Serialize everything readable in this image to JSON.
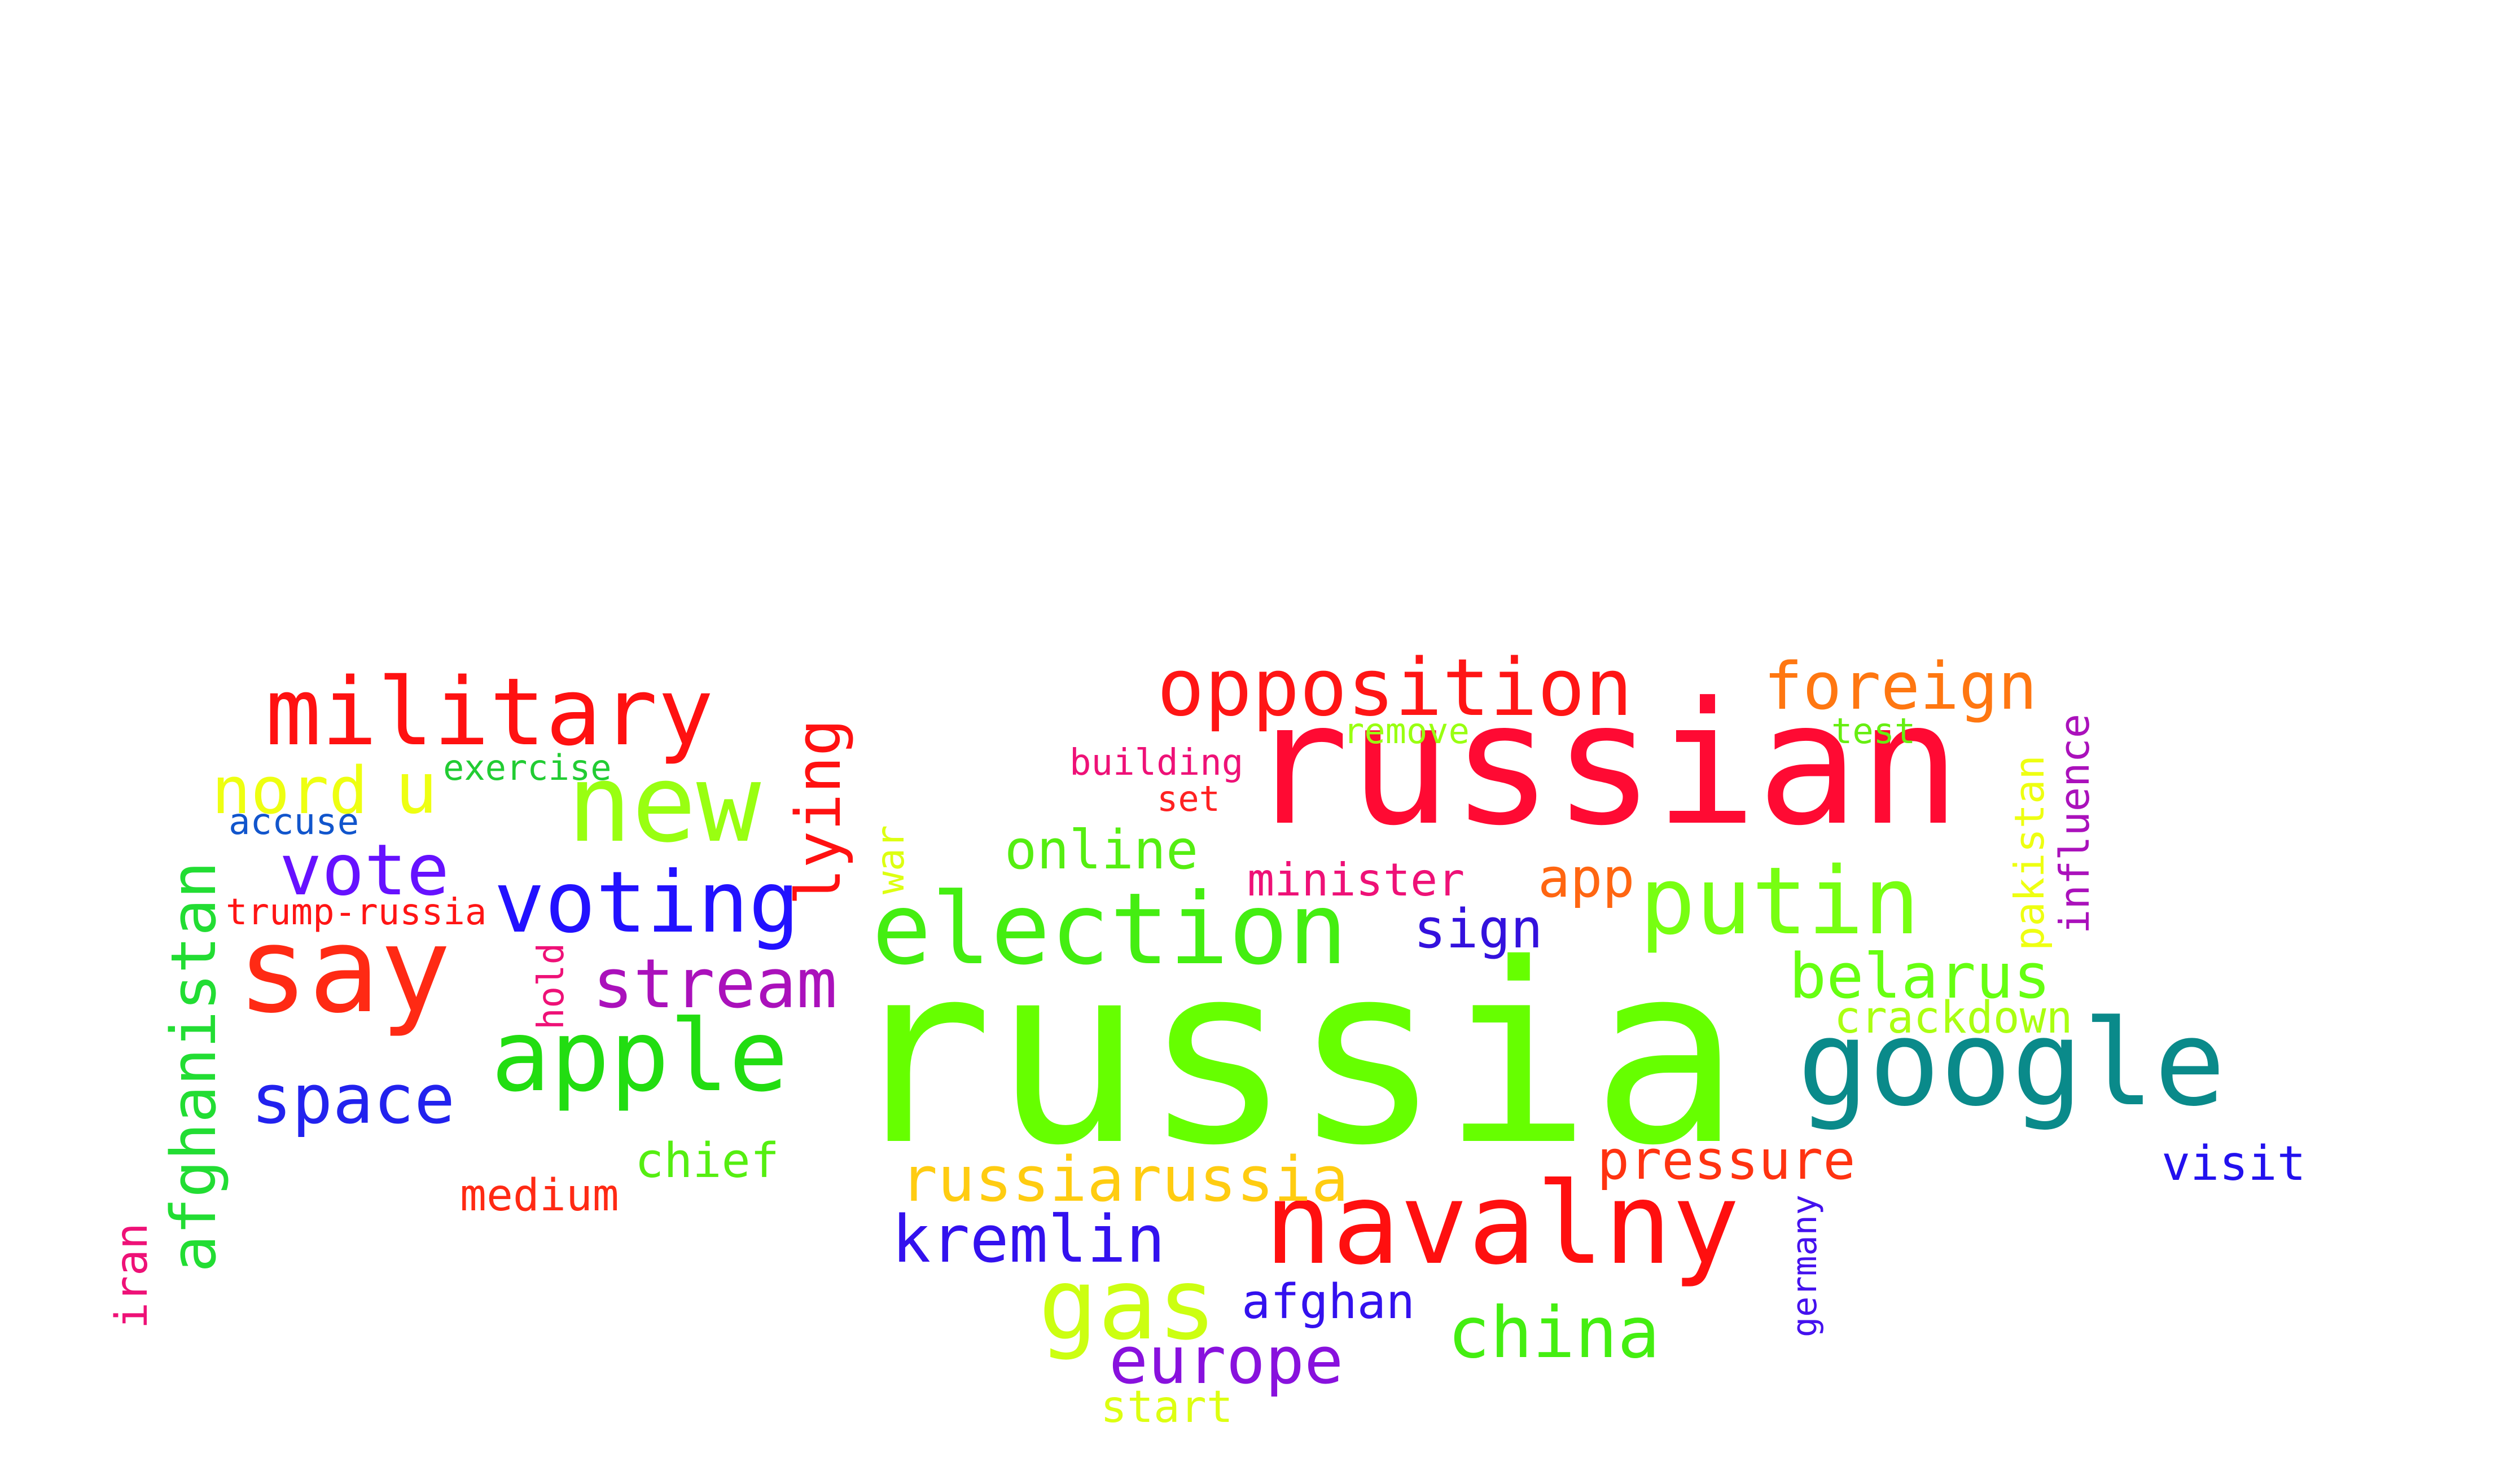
{
  "words": [
    {
      "text": "russia",
      "color": "#66ff00"
    },
    {
      "text": "russian",
      "color": "#ff0a33"
    },
    {
      "text": "navalny",
      "color": "#ff0f0f"
    },
    {
      "text": "google",
      "color": "#0a8a8a"
    },
    {
      "text": "say",
      "color": "#ff2a14"
    },
    {
      "text": "military",
      "color": "#ff1111"
    },
    {
      "text": "new",
      "color": "#99ff11"
    },
    {
      "text": "election",
      "color": "#44ee11"
    },
    {
      "text": "apple",
      "color": "#22dd11"
    },
    {
      "text": "putin",
      "color": "#77ff11"
    },
    {
      "text": "opposition",
      "color": "#ff1515"
    },
    {
      "text": "voting",
      "color": "#2211ff"
    },
    {
      "text": "gas",
      "color": "#ccff11"
    },
    {
      "text": "china",
      "color": "#44ee11"
    },
    {
      "text": "foreign",
      "color": "#ff7711"
    },
    {
      "text": "nord",
      "color": "#eeff11"
    },
    {
      "text": "u",
      "color": "#eeff11"
    },
    {
      "text": "vote",
      "color": "#6611ff"
    },
    {
      "text": "stream",
      "color": "#aa11bb"
    },
    {
      "text": "space",
      "color": "#2222ee"
    },
    {
      "text": "lying",
      "color": "#ff1111"
    },
    {
      "text": "russiarussia",
      "color": "#ffcc11"
    },
    {
      "text": "kremlin",
      "color": "#3311ee"
    },
    {
      "text": "europe",
      "color": "#8811dd"
    },
    {
      "text": "belarus",
      "color": "#66ff11"
    },
    {
      "text": "afghanistan",
      "color": "#22dd33"
    },
    {
      "text": "online",
      "color": "#55ee11"
    },
    {
      "text": "minister",
      "color": "#ee1177"
    },
    {
      "text": "app",
      "color": "#ff6611"
    },
    {
      "text": "sign",
      "color": "#3311dd"
    },
    {
      "text": "pressure",
      "color": "#ff3311"
    },
    {
      "text": "afghan",
      "color": "#3311ee"
    },
    {
      "text": "visit",
      "color": "#2211ee"
    },
    {
      "text": "crackdown",
      "color": "#aaff11"
    },
    {
      "text": "medium",
      "color": "#ff2a14"
    },
    {
      "text": "chief",
      "color": "#55ee11"
    },
    {
      "text": "start",
      "color": "#ddff11"
    },
    {
      "text": "exercise",
      "color": "#22cc33"
    },
    {
      "text": "accuse",
      "color": "#1155cc"
    },
    {
      "text": "trump-russia",
      "color": "#ff1515"
    },
    {
      "text": "building",
      "color": "#ee1177"
    },
    {
      "text": "set",
      "color": "#ff2222"
    },
    {
      "text": "remove",
      "color": "#99ff11"
    },
    {
      "text": "test",
      "color": "#66ee11"
    },
    {
      "text": "influence",
      "color": "#aa11bb"
    },
    {
      "text": "pakistan",
      "color": "#eeff11"
    },
    {
      "text": "war",
      "color": "#ddff11"
    },
    {
      "text": "hold",
      "color": "#ee1177"
    },
    {
      "text": "iran",
      "color": "#ee1177"
    },
    {
      "text": "germany",
      "color": "#4411ee"
    }
  ]
}
